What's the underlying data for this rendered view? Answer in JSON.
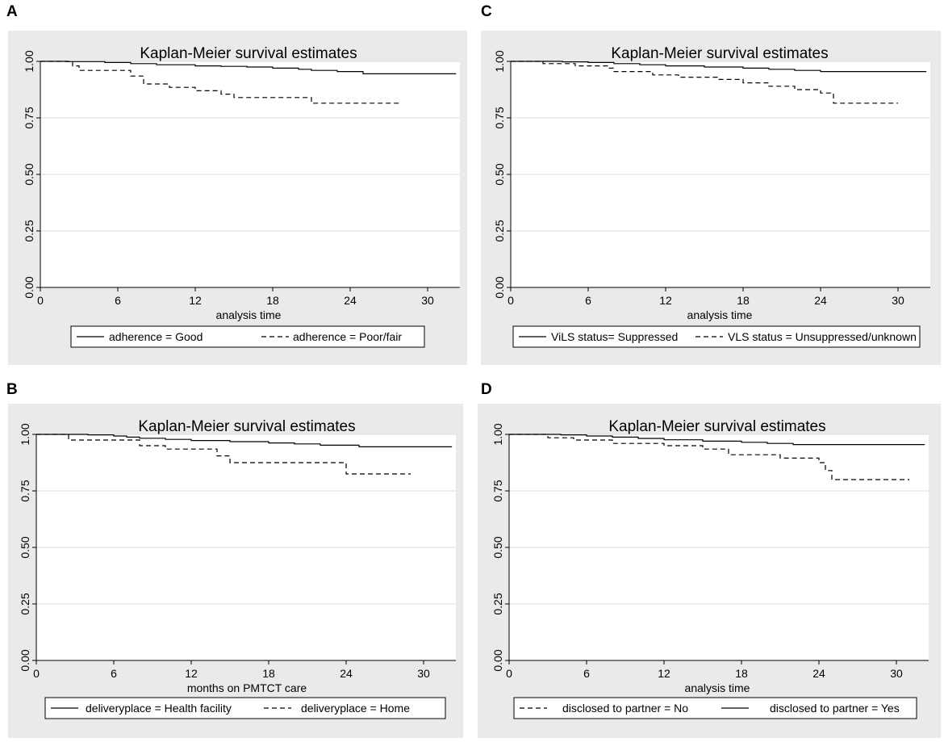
{
  "chart_data": [
    {
      "panel_label": "A",
      "type": "line",
      "title": "Kaplan-Meier survival estimates",
      "xlabel": "analysis time",
      "ylabel": "",
      "xlim": [
        0,
        32.5
      ],
      "ylim": [
        0,
        1
      ],
      "xticks": [
        "0",
        "6",
        "12",
        "18",
        "24",
        "30"
      ],
      "yticks": [
        "0.00",
        "0.25",
        "0.50",
        "0.75",
        "1.00"
      ],
      "series": [
        {
          "name": "adherence  =  Good",
          "dash": "solid",
          "x": [
            0,
            2,
            5,
            7,
            9,
            12,
            14,
            16,
            18,
            20,
            21,
            23,
            24,
            25,
            32.2
          ],
          "y": [
            1.0,
            0.999,
            0.995,
            0.99,
            0.985,
            0.98,
            0.978,
            0.975,
            0.97,
            0.965,
            0.96,
            0.955,
            0.955,
            0.945,
            0.945
          ]
        },
        {
          "name": "adherence  =  Poor/fair",
          "dash": "dashed",
          "x": [
            0,
            2.5,
            3,
            7,
            8,
            10,
            12,
            14,
            15,
            21,
            28
          ],
          "y": [
            1.0,
            0.98,
            0.96,
            0.935,
            0.9,
            0.885,
            0.87,
            0.855,
            0.84,
            0.815,
            0.815
          ]
        }
      ]
    },
    {
      "panel_label": "B",
      "type": "line",
      "title": "Kaplan-Meier survival estimates",
      "xlabel": "months on PMTCT care",
      "ylabel": "",
      "xlim": [
        0,
        32.5
      ],
      "ylim": [
        0,
        1
      ],
      "xticks": [
        "0",
        "6",
        "12",
        "18",
        "24",
        "30"
      ],
      "yticks": [
        "0.00",
        "0.25",
        "0.50",
        "0.75",
        "1.00"
      ],
      "series": [
        {
          "name": "deliveryplace = Health facility",
          "dash": "solid",
          "x": [
            0,
            4,
            6,
            7,
            8,
            10,
            12,
            15,
            18,
            20,
            22,
            25,
            32.2
          ],
          "y": [
            1.0,
            0.998,
            0.993,
            0.988,
            0.983,
            0.978,
            0.973,
            0.968,
            0.962,
            0.958,
            0.952,
            0.945,
            0.945
          ]
        },
        {
          "name": "deliveryplace = Home",
          "dash": "dashed",
          "x": [
            0,
            2.5,
            6,
            8,
            10,
            14,
            15,
            24,
            29
          ],
          "y": [
            1.0,
            0.975,
            0.975,
            0.95,
            0.935,
            0.905,
            0.875,
            0.825,
            0.825
          ]
        }
      ]
    },
    {
      "panel_label": "C",
      "type": "line",
      "title": "Kaplan-Meier survival estimates",
      "xlabel": "analysis time",
      "ylabel": "",
      "xlim": [
        0,
        32.5
      ],
      "ylim": [
        0,
        1
      ],
      "xticks": [
        "0",
        "6",
        "12",
        "18",
        "24",
        "30"
      ],
      "yticks": [
        "0.00",
        "0.25",
        "0.50",
        "0.75",
        "1.00"
      ],
      "series": [
        {
          "name": "ViLS status=  Suppressed",
          "dash": "solid",
          "x": [
            0,
            4,
            6,
            8,
            10,
            12,
            15,
            18,
            20,
            22,
            24,
            32.2
          ],
          "y": [
            1.0,
            0.998,
            0.995,
            0.99,
            0.985,
            0.98,
            0.975,
            0.97,
            0.965,
            0.96,
            0.955,
            0.955
          ]
        },
        {
          "name": "VLS status =  Unsuppressed/unknown",
          "dash": "dashed",
          "x": [
            0,
            2.5,
            5,
            7.5,
            8,
            11,
            13,
            16,
            18,
            20,
            22,
            24,
            25,
            30
          ],
          "y": [
            1.0,
            0.99,
            0.98,
            0.97,
            0.955,
            0.94,
            0.93,
            0.92,
            0.905,
            0.89,
            0.875,
            0.86,
            0.815,
            0.815
          ]
        }
      ]
    },
    {
      "panel_label": "D",
      "type": "line",
      "title": "Kaplan-Meier survival estimates",
      "xlabel": "analysis time",
      "ylabel": "",
      "xlim": [
        0,
        32.5
      ],
      "ylim": [
        0,
        1
      ],
      "xticks": [
        "0",
        "6",
        "12",
        "18",
        "24",
        "30"
      ],
      "yticks": [
        "0.00",
        "0.25",
        "0.50",
        "0.75",
        "1.00"
      ],
      "series": [
        {
          "name": "disclosed to partner = No",
          "dash": "dashed",
          "x": [
            0,
            3,
            5,
            8,
            12,
            15,
            17,
            21,
            24,
            24.5,
            25,
            31
          ],
          "y": [
            1.0,
            0.985,
            0.975,
            0.96,
            0.95,
            0.935,
            0.91,
            0.895,
            0.875,
            0.84,
            0.8,
            0.8
          ]
        },
        {
          "name": "disclosed to partner = Yes",
          "dash": "solid",
          "x": [
            0,
            4,
            6,
            8,
            10,
            12,
            15,
            18,
            20,
            22,
            32.2
          ],
          "y": [
            1.0,
            0.998,
            0.993,
            0.988,
            0.982,
            0.976,
            0.97,
            0.965,
            0.96,
            0.955,
            0.955
          ]
        }
      ]
    }
  ],
  "colors": {
    "panel_background": "#eaeaea",
    "plot_background": "#ffffff",
    "gridline": "#dcdcdc",
    "line": "#000000"
  }
}
